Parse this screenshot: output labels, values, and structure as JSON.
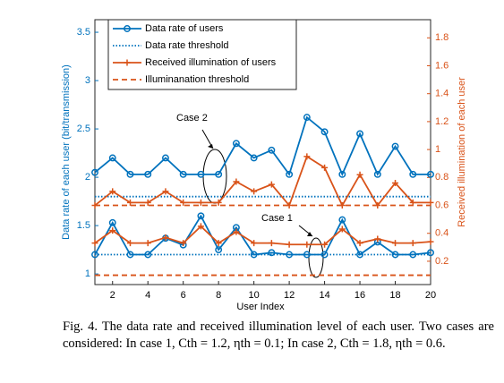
{
  "chart_data": {
    "type": "line",
    "x": [
      1,
      2,
      3,
      4,
      5,
      6,
      7,
      8,
      9,
      10,
      11,
      12,
      13,
      14,
      15,
      16,
      17,
      18,
      19,
      20
    ],
    "xlabel": "User Index",
    "ylabel": "Data rate of each user (bit/transmission)",
    "y2label": "Received illumination of each user",
    "xlim": [
      1,
      20
    ],
    "xticks": [
      2,
      4,
      6,
      8,
      10,
      12,
      14,
      16,
      18,
      20
    ],
    "ylim": [
      0.89,
      3.63
    ],
    "yticks": [
      1,
      1.5,
      2,
      2.5,
      3,
      3.5
    ],
    "y2lim": [
      0.033,
      1.93
    ],
    "y2ticks": [
      0.2,
      0.4,
      0.6,
      0.8,
      1,
      1.2,
      1.4,
      1.6,
      1.8
    ],
    "legend": "upper left",
    "series": [
      {
        "name": "Data rate of users",
        "color": "#0072bd",
        "style": "solid",
        "marker": "o",
        "axis": "y",
        "values": [
          2.05,
          2.2,
          2.03,
          2.03,
          2.2,
          2.03,
          2.03,
          2.03,
          2.35,
          2.2,
          2.28,
          2.03,
          2.62,
          2.47,
          2.03,
          2.45,
          2.03,
          2.32,
          2.03,
          2.03
        ]
      },
      {
        "name": "Data rate threshold",
        "color": "#0072bd",
        "style": "dotted",
        "marker": null,
        "axis": "y",
        "values": [
          1.8,
          1.8,
          1.8,
          1.8,
          1.8,
          1.8,
          1.8,
          1.8,
          1.8,
          1.8,
          1.8,
          1.8,
          1.8,
          1.8,
          1.8,
          1.8,
          1.8,
          1.8,
          1.8,
          1.8
        ]
      },
      {
        "name": "Received illumination of users",
        "color": "#d95319",
        "style": "solid",
        "marker": "+",
        "axis": "y2",
        "values": [
          0.6,
          0.7,
          0.62,
          0.62,
          0.7,
          0.62,
          0.62,
          0.62,
          0.77,
          0.7,
          0.75,
          0.6,
          0.95,
          0.87,
          0.6,
          0.82,
          0.6,
          0.76,
          0.62,
          0.62
        ]
      },
      {
        "name": "Illuminanation threshold",
        "color": "#d95319",
        "style": "dashed",
        "marker": null,
        "axis": "y2",
        "values": [
          0.6,
          0.6,
          0.6,
          0.6,
          0.6,
          0.6,
          0.6,
          0.6,
          0.6,
          0.6,
          0.6,
          0.6,
          0.6,
          0.6,
          0.6,
          0.6,
          0.6,
          0.6,
          0.6,
          0.6
        ]
      },
      {
        "name": "Data rate of users",
        "color": "#0072bd",
        "style": "solid",
        "marker": "o",
        "axis": "y",
        "values": [
          1.2,
          1.53,
          1.2,
          1.2,
          1.37,
          1.3,
          1.6,
          1.25,
          1.48,
          1.2,
          1.22,
          1.2,
          1.2,
          1.2,
          1.56,
          1.2,
          1.33,
          1.2,
          1.2,
          1.22
        ]
      },
      {
        "name": "Data rate threshold",
        "color": "#0072bd",
        "style": "dotted",
        "marker": null,
        "axis": "y",
        "values": [
          1.2,
          1.2,
          1.2,
          1.2,
          1.2,
          1.2,
          1.2,
          1.2,
          1.2,
          1.2,
          1.2,
          1.2,
          1.2,
          1.2,
          1.2,
          1.2,
          1.2,
          1.2,
          1.2,
          1.2
        ]
      },
      {
        "name": "Received illumination of users",
        "color": "#d95319",
        "style": "solid",
        "marker": "+",
        "axis": "y2",
        "values": [
          0.33,
          0.42,
          0.33,
          0.33,
          0.37,
          0.33,
          0.45,
          0.33,
          0.41,
          0.33,
          0.33,
          0.32,
          0.32,
          0.32,
          0.43,
          0.33,
          0.36,
          0.33,
          0.33,
          0.34
        ]
      },
      {
        "name": "Illuminanation threshold",
        "color": "#d95319",
        "style": "dashed",
        "marker": null,
        "axis": "y2",
        "values": [
          0.1,
          0.1,
          0.1,
          0.1,
          0.1,
          0.1,
          0.1,
          0.1,
          0.1,
          0.1,
          0.1,
          0.1,
          0.1,
          0.1,
          0.1,
          0.1,
          0.1,
          0.1,
          0.1,
          0.1
        ]
      }
    ],
    "annotations": [
      "Case 2",
      "Case 1"
    ],
    "caption": "Fig. 4.  The data rate and received illumination level of each user. Two cases are considered: In case 1, Cth = 1.2, ηth = 0.1; In case 2, Cth = 1.8, ηth = 0.6."
  }
}
